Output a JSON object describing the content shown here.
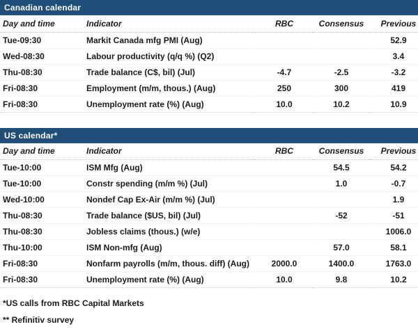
{
  "colors": {
    "section_header_bg": "#1f4e79",
    "section_header_text": "#ffffff",
    "body_text": "#1a1a1a",
    "row_rule": "#c9c9c9"
  },
  "canadian": {
    "title": "Canadian calendar",
    "columns": [
      "Day and time",
      "Indicator",
      "RBC",
      "Consensus",
      "Previous"
    ],
    "rows": [
      [
        "Tue-09:30",
        "Markit Canada mfg PMI (Aug)",
        "",
        "",
        "52.9"
      ],
      [
        "Wed-08:30",
        "Labour productivity (q/q %) (Q2)",
        "",
        "",
        "3.4"
      ],
      [
        "Thu-08:30",
        "Trade balance (C$, bil) (Jul)",
        "-4.7",
        "-2.5",
        "-3.2"
      ],
      [
        "Fri-08:30",
        "Employment (m/m, thous.) (Aug)",
        "250",
        "300",
        "419"
      ],
      [
        "Fri-08:30",
        "Unemployment rate (%) (Aug)",
        "10.0",
        "10.2",
        "10.9"
      ]
    ]
  },
  "us": {
    "title": "US calendar*",
    "columns": [
      "Day and time",
      "Indicator",
      "RBC",
      "Consensus",
      "Previous"
    ],
    "rows": [
      [
        "Tue-10:00",
        "ISM Mfg (Aug)",
        "",
        "54.5",
        "54.2"
      ],
      [
        "Tue-10:00",
        "Constr spending (m/m %) (Jul)",
        "",
        "1.0",
        "-0.7"
      ],
      [
        "Wed-10:00",
        "Nondef Cap Ex-Air (m/m %) (Jul)",
        "",
        "",
        "1.9"
      ],
      [
        "Thu-08:30",
        "Trade balance ($US, bil) (Jul)",
        "",
        "-52",
        "-51"
      ],
      [
        "Thu-08:30",
        "Jobless claims (thous.) (w/e)",
        "",
        "",
        "1006.0"
      ],
      [
        "Thu-10:00",
        "ISM Non-mfg (Aug)",
        "",
        "57.0",
        "58.1"
      ],
      [
        "Fri-08:30",
        "Nonfarm payrolls (m/m, thous. diff) (Aug)",
        "2000.0",
        "1400.0",
        "1763.0"
      ],
      [
        "Fri-08:30",
        "Unemployment rate (%) (Aug)",
        "10.0",
        "9.8",
        "10.2"
      ]
    ]
  },
  "footnotes": [
    "*US calls from RBC Capital Markets",
    "** Refinitiv survey"
  ]
}
